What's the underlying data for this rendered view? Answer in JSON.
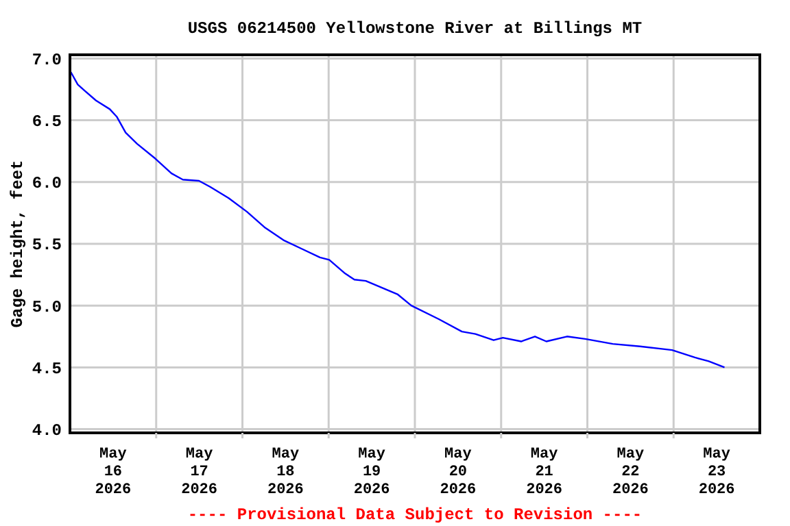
{
  "chart_data": {
    "type": "line",
    "title": "USGS 06214500 Yellowstone River at Billings MT",
    "ylabel": "Gage height, feet",
    "annotations": [
      "---- Provisional Data Subject to Revision ----"
    ],
    "x": [
      "2026-05-16T00:15",
      "2026-05-16T02:10",
      "2026-05-16T04:05",
      "2026-05-16T07:15",
      "2026-05-16T11:05",
      "2026-05-16T13:00",
      "2026-05-16T15:30",
      "2026-05-16T18:40",
      "2026-05-16T23:45",
      "2026-05-17T04:15",
      "2026-05-17T07:25",
      "2026-05-17T11:55",
      "2026-05-17T15:05",
      "2026-05-17T20:10",
      "2026-05-18T01:15",
      "2026-05-18T06:20",
      "2026-05-18T11:25",
      "2026-05-18T16:30",
      "2026-05-18T21:35",
      "2026-05-19T00:10",
      "2026-05-19T04:35",
      "2026-05-19T07:10",
      "2026-05-19T10:20",
      "2026-05-19T19:15",
      "2026-05-19T23:00",
      "2026-05-20T06:40",
      "2026-05-20T13:05",
      "2026-05-20T16:50",
      "2026-05-20T21:55",
      "2026-05-21T00:30",
      "2026-05-21T05:35",
      "2026-05-21T09:25",
      "2026-05-21T12:35",
      "2026-05-21T18:20",
      "2026-05-21T23:25",
      "2026-05-22T07:05",
      "2026-05-22T14:40",
      "2026-05-22T23:35",
      "2026-05-23T05:55",
      "2026-05-23T09:45",
      "2026-05-23T14:10"
    ],
    "series": [
      {
        "color": "#0000ff",
        "values": [
          6.89,
          6.79,
          6.74,
          6.66,
          6.59,
          6.53,
          6.4,
          6.31,
          6.19,
          6.07,
          6.02,
          6.01,
          5.96,
          5.87,
          5.76,
          5.63,
          5.53,
          5.46,
          5.39,
          5.37,
          5.26,
          5.21,
          5.2,
          5.09,
          5.0,
          4.89,
          4.79,
          4.77,
          4.72,
          4.74,
          4.71,
          4.75,
          4.71,
          4.75,
          4.73,
          4.69,
          4.67,
          4.64,
          4.58,
          4.55,
          4.5
        ]
      }
    ],
    "xlim": [
      "2026-05-16",
      "2026-05-24"
    ],
    "xticks": [
      {
        "value": "2026-05-16T12:00",
        "label": "May\n16\n2026"
      },
      {
        "value": "2026-05-17T00:00",
        "label": null
      },
      {
        "value": "2026-05-17T12:00",
        "label": "May\n17\n2026"
      },
      {
        "value": "2026-05-18T00:00",
        "label": null
      },
      {
        "value": "2026-05-18T12:00",
        "label": "May\n18\n2026"
      },
      {
        "value": "2026-05-19T00:00",
        "label": null
      },
      {
        "value": "2026-05-19T12:00",
        "label": "May\n19\n2026"
      },
      {
        "value": "2026-05-20T00:00",
        "label": null
      },
      {
        "value": "2026-05-20T12:00",
        "label": "May\n20\n2026"
      },
      {
        "value": "2026-05-21T00:00",
        "label": null
      },
      {
        "value": "2026-05-21T12:00",
        "label": "May\n21\n2026"
      },
      {
        "value": "2026-05-22T00:00",
        "label": null
      },
      {
        "value": "2026-05-22T12:00",
        "label": "May\n22\n2026"
      },
      {
        "value": "2026-05-23T00:00",
        "label": null
      },
      {
        "value": "2026-05-23T12:00",
        "label": "May\n23\n2026"
      }
    ],
    "ylim": [
      3.97,
      7.03
    ],
    "yticks": [
      {
        "value": 4.0,
        "label": "4.0"
      },
      {
        "value": 4.5,
        "label": "4.5"
      },
      {
        "value": 5.0,
        "label": "5.0"
      },
      {
        "value": 5.5,
        "label": "5.5"
      },
      {
        "value": 6.0,
        "label": "6.0"
      },
      {
        "value": 6.5,
        "label": "6.5"
      },
      {
        "value": 7.0,
        "label": "7.0"
      }
    ],
    "grid": true,
    "line_style": "solid"
  }
}
